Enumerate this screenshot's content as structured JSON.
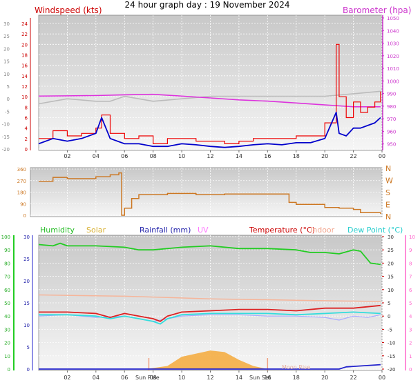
{
  "title": "24 hour graph day : 19 November 2024",
  "colors": {
    "wind": "#ee0000",
    "wind_avg": "#0000cc",
    "baro": "#dd33dd",
    "temp_grey": "#bbbbbb",
    "wind_dir": "#cc7722",
    "humidity": "#22cc22",
    "solar": "#f4a93a",
    "rain": "#2222cc",
    "uv": "#ff88ff",
    "temp": "#dd2222",
    "indoor": "#f6b59a",
    "dewpoint": "#33dddd",
    "temp_extra": "#aaaaff"
  },
  "chart_data": [
    {
      "type": "line",
      "labels": {
        "left": "Windspeed (kts)",
        "right": "Barometer (hpa)"
      },
      "x_ticks": [
        "02",
        "04",
        "06",
        "08",
        "10",
        "12",
        "14",
        "16",
        "18",
        "20",
        "22",
        "00"
      ],
      "y_outer_ticks": [
        "30",
        "25",
        "20",
        "15",
        "10",
        "5",
        "0",
        "-5",
        "-10",
        "-15",
        "-20"
      ],
      "y_left_ticks": [
        "24",
        "22",
        "20",
        "18",
        "16",
        "14",
        "12",
        "10",
        "8",
        "6",
        "4",
        "2",
        "0"
      ],
      "y_left_range": [
        0,
        24
      ],
      "y_right_ticks": [
        "1050",
        "1040",
        "1030",
        "1020",
        "1010",
        "1000",
        "990",
        "980",
        "970",
        "960",
        "950"
      ],
      "y_right_range": [
        946,
        1050
      ],
      "y_outer_range": [
        -20,
        30
      ],
      "x_range": [
        0,
        24
      ],
      "series": [
        {
          "key": "gust",
          "points": [
            [
              0,
              2
            ],
            [
              1,
              3.5
            ],
            [
              2,
              2.5
            ],
            [
              3,
              3
            ],
            [
              4,
              4
            ],
            [
              4.4,
              6.5
            ],
            [
              5,
              3
            ],
            [
              6,
              2
            ],
            [
              7,
              2.5
            ],
            [
              8,
              1
            ],
            [
              9,
              2
            ],
            [
              10,
              2
            ],
            [
              11,
              1.5
            ],
            [
              12,
              1.5
            ],
            [
              13,
              1
            ],
            [
              14,
              1.5
            ],
            [
              15,
              2
            ],
            [
              16,
              2
            ],
            [
              17,
              2
            ],
            [
              18,
              2.5
            ],
            [
              19,
              2.5
            ],
            [
              20,
              5
            ],
            [
              20.8,
              20
            ],
            [
              21,
              10
            ],
            [
              21.5,
              6
            ],
            [
              22,
              9
            ],
            [
              22.5,
              7
            ],
            [
              23,
              8
            ],
            [
              23.5,
              9
            ],
            [
              23.9,
              11
            ]
          ]
        },
        {
          "key": "avg",
          "points": [
            [
              0,
              1
            ],
            [
              1,
              2
            ],
            [
              2,
              1.5
            ],
            [
              3,
              2
            ],
            [
              4,
              3
            ],
            [
              4.4,
              6
            ],
            [
              5,
              2
            ],
            [
              6,
              1
            ],
            [
              7,
              1
            ],
            [
              8,
              0.5
            ],
            [
              9,
              0.5
            ],
            [
              10,
              1
            ],
            [
              11,
              0.8
            ],
            [
              12,
              0.5
            ],
            [
              13,
              0.3
            ],
            [
              14,
              0.5
            ],
            [
              15,
              0.8
            ],
            [
              16,
              1
            ],
            [
              17,
              0.8
            ],
            [
              18,
              1.2
            ],
            [
              19,
              1.2
            ],
            [
              20,
              2
            ],
            [
              20.8,
              7
            ],
            [
              21,
              3
            ],
            [
              21.5,
              2.5
            ],
            [
              22,
              4
            ],
            [
              22.5,
              4
            ],
            [
              23,
              4.5
            ],
            [
              23.5,
              5
            ],
            [
              23.9,
              6
            ]
          ]
        },
        {
          "key": "baro",
          "points": [
            [
              0,
              988
            ],
            [
              2,
              988.2
            ],
            [
              4,
              988.4
            ],
            [
              6,
              989
            ],
            [
              8,
              989.4
            ],
            [
              10,
              988
            ],
            [
              12,
              986.5
            ],
            [
              14,
              985
            ],
            [
              16,
              984
            ],
            [
              18,
              982.5
            ],
            [
              20,
              981
            ],
            [
              22,
              979.5
            ],
            [
              23.9,
              979.5
            ]
          ]
        },
        {
          "key": "temp_grey",
          "points": [
            [
              0,
              -2
            ],
            [
              2,
              0
            ],
            [
              4,
              -1
            ],
            [
              5,
              -1
            ],
            [
              6,
              1
            ],
            [
              7,
              0
            ],
            [
              8,
              -1
            ],
            [
              10,
              0
            ],
            [
              12,
              1
            ],
            [
              14,
              1
            ],
            [
              16,
              1
            ],
            [
              18,
              1
            ],
            [
              20,
              1
            ],
            [
              22,
              2
            ],
            [
              23.9,
              3
            ]
          ]
        }
      ]
    },
    {
      "type": "line",
      "labels": {
        "right_dirs": [
          "N",
          "W",
          "S",
          "E",
          "N"
        ]
      },
      "y_left_ticks": [
        "360",
        "270",
        "180",
        "90",
        "0"
      ],
      "y_range": [
        0,
        360
      ],
      "series": [
        {
          "key": "dir",
          "points": [
            [
              0,
              265
            ],
            [
              1,
              295
            ],
            [
              2,
              285
            ],
            [
              3,
              285
            ],
            [
              4,
              300
            ],
            [
              5,
              315
            ],
            [
              5.6,
              330
            ],
            [
              5.8,
              0
            ],
            [
              6,
              55
            ],
            [
              6.5,
              130
            ],
            [
              7,
              160
            ],
            [
              9,
              170
            ],
            [
              11,
              160
            ],
            [
              13,
              165
            ],
            [
              17,
              165
            ],
            [
              17.5,
              100
            ],
            [
              18,
              85
            ],
            [
              20,
              60
            ],
            [
              21,
              55
            ],
            [
              22,
              45
            ],
            [
              22.5,
              20
            ],
            [
              23.9,
              10
            ]
          ]
        }
      ]
    },
    {
      "type": "line",
      "labels": {
        "humidity": "Humidity",
        "solar": "Solar",
        "rain": "Rainfall (mm)",
        "uv": "UV",
        "temp": "Temperature (°C)",
        "indoor": "Indoor",
        "dewpoint": "Dew Point (°C)",
        "sunrise": "Sun Rise",
        "sunset": "Sun Set",
        "moonrise": "Moon Rise"
      },
      "y_hum_ticks": [
        "100",
        "90",
        "80",
        "70",
        "60",
        "50",
        "40",
        "30",
        "20",
        "10",
        "0"
      ],
      "y_hum_range": [
        0,
        100
      ],
      "y_rain_ticks": [
        "30",
        "25",
        "20",
        "15",
        "10",
        "5",
        "0"
      ],
      "y_temp_ticks": [
        "30",
        "25",
        "20",
        "15",
        "10",
        "5",
        "0",
        "-5",
        "-10",
        "-15",
        "-20"
      ],
      "y_temp_range": [
        -20,
        30
      ],
      "y_uv_ticks": [
        "10",
        "9",
        "8",
        "7",
        "6",
        "5",
        "4",
        "3",
        "2",
        "1",
        "0"
      ],
      "x_ticks": [
        "02",
        "04",
        "06",
        "08",
        "10",
        "12",
        "14",
        "16",
        "18",
        "20",
        "22",
        "00"
      ],
      "sunrise_hour": 7.7,
      "sunset_hour": 16.0,
      "series": [
        {
          "key": "humidity",
          "points": [
            [
              0,
              94
            ],
            [
              1,
              93
            ],
            [
              1.5,
              95
            ],
            [
              2,
              93
            ],
            [
              4,
              93
            ],
            [
              6,
              92
            ],
            [
              7,
              90
            ],
            [
              8,
              90
            ],
            [
              10,
              92
            ],
            [
              12,
              93
            ],
            [
              14,
              91
            ],
            [
              16,
              91
            ],
            [
              18,
              90
            ],
            [
              19,
              88
            ],
            [
              20,
              88
            ],
            [
              21,
              87
            ],
            [
              22,
              90
            ],
            [
              22.5,
              89
            ],
            [
              23.2,
              80
            ],
            [
              23.9,
              79
            ]
          ]
        },
        {
          "key": "solar",
          "points": [
            [
              7.5,
              0
            ],
            [
              9,
              1
            ],
            [
              10,
              4
            ],
            [
              11,
              5
            ],
            [
              12,
              6
            ],
            [
              13,
              5.5
            ],
            [
              14,
              3
            ],
            [
              15,
              1
            ],
            [
              16,
              0
            ]
          ]
        },
        {
          "key": "rain",
          "points": [
            [
              0,
              0
            ],
            [
              21,
              0
            ],
            [
              21.5,
              0.5
            ],
            [
              23.9,
              1
            ]
          ]
        },
        {
          "key": "temp",
          "points": [
            [
              0,
              1.5
            ],
            [
              2,
              1.5
            ],
            [
              4,
              1
            ],
            [
              5,
              -0.5
            ],
            [
              6,
              1
            ],
            [
              7,
              0
            ],
            [
              8,
              -1
            ],
            [
              8.5,
              -2
            ],
            [
              9,
              0
            ],
            [
              10,
              1.5
            ],
            [
              12,
              2
            ],
            [
              14,
              2.5
            ],
            [
              16,
              2.5
            ],
            [
              18,
              2
            ],
            [
              20,
              3
            ],
            [
              22,
              3
            ],
            [
              23.9,
              4
            ]
          ]
        },
        {
          "key": "indoor",
          "points": [
            [
              0,
              8
            ],
            [
              6,
              7.5
            ],
            [
              12,
              6.5
            ],
            [
              18,
              6
            ],
            [
              23.9,
              5.5
            ]
          ]
        },
        {
          "key": "dewpoint",
          "points": [
            [
              0,
              0.5
            ],
            [
              2,
              0.5
            ],
            [
              4,
              0
            ],
            [
              5,
              -1
            ],
            [
              6,
              0
            ],
            [
              7,
              -1
            ],
            [
              8,
              -2
            ],
            [
              8.5,
              -3
            ],
            [
              9,
              -1
            ],
            [
              10,
              0.5
            ],
            [
              12,
              1
            ],
            [
              14,
              1
            ],
            [
              16,
              1
            ],
            [
              18,
              0.5
            ],
            [
              20,
              1
            ],
            [
              22,
              1.5
            ],
            [
              23.9,
              1
            ]
          ]
        },
        {
          "key": "temp_extra",
          "points": [
            [
              0,
              0
            ],
            [
              2,
              0.5
            ],
            [
              4,
              -0.5
            ],
            [
              6,
              0
            ],
            [
              8,
              -2
            ],
            [
              10,
              0
            ],
            [
              12,
              0.5
            ],
            [
              14,
              0.5
            ],
            [
              16,
              0
            ],
            [
              18,
              0
            ],
            [
              20,
              -0.5
            ],
            [
              21,
              -1.5
            ],
            [
              22,
              0
            ],
            [
              23,
              -0.5
            ],
            [
              23.9,
              0.5
            ]
          ]
        }
      ]
    }
  ]
}
